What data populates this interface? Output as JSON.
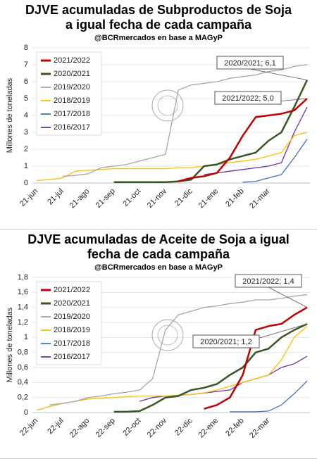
{
  "chart_data": [
    {
      "type": "line",
      "title": "DJVE acumuladas de Subproductos de Soja a igual fecha de cada campaña",
      "subtitle": "@BCRmercados en base a MAGyP",
      "y_label": "Millones de toneladas",
      "categories": [
        "21-jun",
        null,
        "21-jul",
        null,
        "21-ago",
        null,
        "21-sep",
        null,
        "21-oct",
        null,
        "21-nov",
        null,
        "21-dic",
        null,
        "21-ene",
        null,
        "21-feb",
        null,
        "21-mar",
        null,
        null,
        null
      ],
      "ylim": [
        0,
        8
      ],
      "yticks": [
        0,
        1,
        2,
        3,
        4,
        5,
        6,
        7,
        8
      ],
      "grid": true,
      "series": [
        {
          "name": "2021/2022",
          "color": "#c00000",
          "values": [
            null,
            null,
            null,
            null,
            null,
            null,
            null,
            null,
            null,
            null,
            null,
            0.1,
            0.3,
            0.4,
            0.6,
            1.5,
            2.8,
            3.9,
            4.0,
            4.1,
            4.3,
            5.0
          ]
        },
        {
          "name": "2020/2021",
          "color": "#375623",
          "values": [
            null,
            null,
            null,
            null,
            null,
            null,
            0.05,
            0.05,
            0.05,
            0.05,
            0.05,
            0.1,
            0.2,
            1.0,
            1.1,
            1.4,
            1.6,
            1.8,
            2.5,
            3.0,
            4.5,
            6.1
          ]
        },
        {
          "name": "2019/2020",
          "color": "#a6a6a6",
          "values": [
            null,
            null,
            0.4,
            0.45,
            0.55,
            0.9,
            1.0,
            1.1,
            1.3,
            1.5,
            1.7,
            5.5,
            5.8,
            5.9,
            6.0,
            6.2,
            6.3,
            6.4,
            6.6,
            6.7,
            6.9,
            7.0
          ]
        },
        {
          "name": "2018/2019",
          "color": "#ffc000",
          "values": [
            0.15,
            0.2,
            0.3,
            0.7,
            0.75,
            0.8,
            0.85,
            0.85,
            0.85,
            0.85,
            0.85,
            0.9,
            0.9,
            1.0,
            1.1,
            1.2,
            1.3,
            1.4,
            1.6,
            1.8,
            2.8,
            3.0
          ]
        },
        {
          "name": "2017/2018",
          "color": "#4472c4",
          "values": [
            null,
            null,
            null,
            null,
            null,
            null,
            null,
            null,
            null,
            null,
            null,
            null,
            null,
            null,
            null,
            null,
            0.05,
            0.1,
            0.3,
            0.5,
            1.5,
            2.6
          ]
        },
        {
          "name": "2016/2017",
          "color": "#7030a0",
          "values": [
            null,
            null,
            null,
            null,
            null,
            null,
            null,
            null,
            null,
            null,
            null,
            null,
            null,
            0.5,
            0.6,
            0.7,
            0.8,
            0.9,
            1.0,
            1.2,
            3.0,
            4.5
          ]
        }
      ],
      "annotations": [
        "2020/2021; 6,1",
        "2021/2022; 5,0"
      ]
    },
    {
      "type": "line",
      "title": "DJVE acumuladas de Aceite de Soja a igual fecha de cada campaña",
      "subtitle": "@BCRmercados en base a MAGyP",
      "y_label": "Millones de toneladas",
      "categories": [
        "22-jun",
        null,
        "22-jul",
        null,
        "22-ago",
        null,
        "22-sep",
        null,
        "22-oct",
        null,
        "22-nov",
        null,
        "22-dic",
        null,
        "22-ene",
        null,
        "22-feb",
        null,
        "22-mar",
        null,
        null,
        null
      ],
      "ylim": [
        0,
        1.8
      ],
      "yticks": [
        0,
        {
          "value": 0.2,
          "label": "0,2"
        },
        {
          "value": 0.4,
          "label": "0,4"
        },
        {
          "value": 0.6,
          "label": "0,6"
        },
        {
          "value": 0.8,
          "label": "0,8"
        },
        1,
        {
          "value": 1.2,
          "label": "1,2"
        },
        {
          "value": 1.4,
          "label": "1,4"
        },
        {
          "value": 1.6,
          "label": "1,6"
        },
        {
          "value": 1.8,
          "label": "1,8"
        }
      ],
      "grid": true,
      "series": [
        {
          "name": "2021/2022",
          "color": "#c00000",
          "values": [
            null,
            null,
            null,
            null,
            null,
            null,
            null,
            null,
            null,
            null,
            null,
            null,
            null,
            0.05,
            0.1,
            0.2,
            0.5,
            1.1,
            1.15,
            1.18,
            1.3,
            1.4
          ]
        },
        {
          "name": "2020/2021",
          "color": "#375623",
          "values": [
            null,
            null,
            null,
            null,
            null,
            null,
            0.01,
            0.01,
            0.02,
            0.1,
            0.2,
            0.22,
            0.3,
            0.33,
            0.38,
            0.5,
            0.6,
            0.8,
            0.85,
            1.0,
            1.1,
            1.18
          ]
        },
        {
          "name": "2019/2020",
          "color": "#a6a6a6",
          "values": [
            null,
            0.1,
            0.12,
            0.15,
            0.2,
            0.22,
            0.25,
            0.27,
            0.3,
            0.45,
            1.1,
            1.3,
            1.35,
            1.4,
            1.42,
            1.45,
            1.47,
            1.5,
            1.5,
            1.52,
            1.55,
            1.57
          ]
        },
        {
          "name": "2018/2019",
          "color": "#ffc000",
          "values": [
            0.03,
            0.08,
            0.12,
            0.15,
            0.18,
            0.19,
            0.2,
            0.21,
            0.22,
            0.22,
            0.22,
            0.23,
            0.24,
            0.26,
            0.3,
            0.35,
            0.4,
            0.45,
            0.5,
            0.7,
            1.0,
            1.15
          ]
        },
        {
          "name": "2017/2018",
          "color": "#4472c4",
          "values": [
            null,
            null,
            null,
            null,
            null,
            null,
            null,
            null,
            null,
            null,
            null,
            null,
            null,
            null,
            null,
            0.01,
            0.01,
            0.01,
            0.02,
            0.1,
            0.25,
            0.42
          ]
        },
        {
          "name": "2016/2017",
          "color": "#7030a0",
          "values": [
            null,
            null,
            null,
            null,
            null,
            null,
            null,
            null,
            0.15,
            0.2,
            0.22,
            0.23,
            0.24,
            0.26,
            0.28,
            0.3,
            0.4,
            0.45,
            0.5,
            0.6,
            0.65,
            0.75
          ]
        }
      ],
      "annotations": [
        "2021/2022; 1,4",
        "2020/2021; 1,2"
      ]
    }
  ]
}
